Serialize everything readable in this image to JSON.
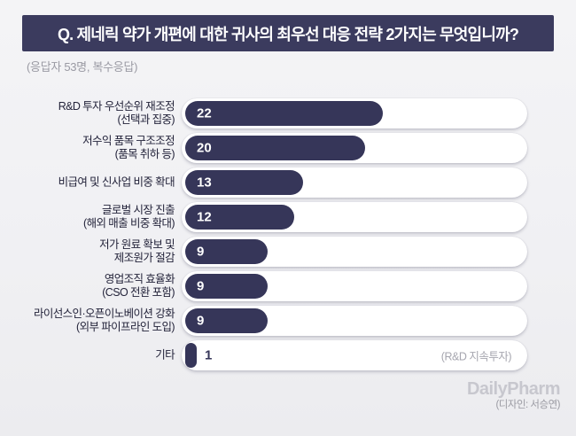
{
  "header": {
    "question": "Q. 제네릭 약가 개편에 대한 귀사의 최우선 대응 전략 2가지는 무엇입니까?",
    "respondents_note": "(응답자 53명, 복수응답)"
  },
  "chart_data": {
    "type": "bar",
    "orientation": "horizontal",
    "title": "제네릭 약가 개편에 대한 귀사의 최우선 대응 전략 2가지",
    "unit": "응답 수 (명)",
    "legend": "none",
    "grid": false,
    "categories": [
      "R&D 투자 우선순위 재조정 (선택과 집중)",
      "저수익 품목 구조조정 (품목 취하 등)",
      "비급여 및 신사업 비중 확대",
      "글로벌 시장 진출 (해외 매출 비중 확대)",
      "저가 원료 확보 및 제조원가 절감",
      "영업조직 효율화 (CSO 전환 포함)",
      "라이선스인·오픈이노베이션 강화 (외부 파이프라인 도입)",
      "기타"
    ],
    "values": [
      22,
      20,
      13,
      12,
      9,
      9,
      9,
      1
    ],
    "rows": [
      {
        "label_line1": "R&D 투자 우선순위 재조정",
        "label_line2": "(선택과 집중)",
        "value": 22,
        "annotation": ""
      },
      {
        "label_line1": "저수익 품목 구조조정",
        "label_line2": "(품목 취하 등)",
        "value": 20,
        "annotation": ""
      },
      {
        "label_line1": "비급여 및 신사업 비중 확대",
        "label_line2": "",
        "value": 13,
        "annotation": ""
      },
      {
        "label_line1": "글로벌 시장 진출",
        "label_line2": "(해외 매출 비중 확대)",
        "value": 12,
        "annotation": ""
      },
      {
        "label_line1": "저가 원료 확보 및",
        "label_line2": "제조원가 절감",
        "value": 9,
        "annotation": ""
      },
      {
        "label_line1": "영업조직 효율화",
        "label_line2": "(CSO 전환 포함)",
        "value": 9,
        "annotation": ""
      },
      {
        "label_line1": "라이선스인·오픈이노베이션 강화",
        "label_line2": "(외부 파이프라인 도입)",
        "value": 9,
        "annotation": ""
      },
      {
        "label_line1": "기타",
        "label_line2": "",
        "value": 1,
        "annotation": "(R&D 지속투자)"
      }
    ]
  },
  "footer": {
    "brand": "DailyPharm",
    "credit": "(디자인: 서승연)"
  },
  "colors": {
    "banner_navy": "#3b3b5e",
    "bar_navy": "#363659",
    "track_white": "#ffffff",
    "label_dark": "#23233a",
    "subtitle_gray": "#9a9aa3",
    "annotation_gray": "#a6a6af",
    "logo_gray": "#c7c7ce"
  }
}
